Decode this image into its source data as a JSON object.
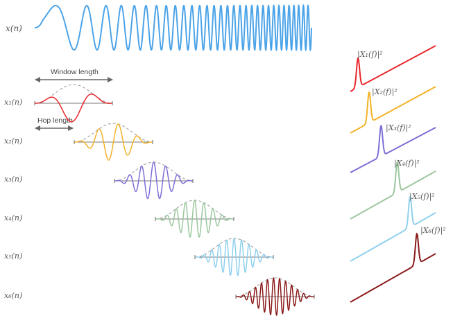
{
  "signal_label": "x(n)",
  "window_length_label": "Window length",
  "hop_length_label": "Hop length",
  "frames": [
    {
      "label": "x₁(n)",
      "spectrum_label": "|X₁(f)|²",
      "color": "#e8272b",
      "cycles": 1.6
    },
    {
      "label": "x₂(n)",
      "spectrum_label": "|X₂(f)|²",
      "color": "#f2b227",
      "cycles": 4
    },
    {
      "label": "x₃(n)",
      "spectrum_label": "|X₃(f)|²",
      "color": "#7b6fd6",
      "cycles": 6.5
    },
    {
      "label": "x₄(n)",
      "spectrum_label": "|X₄(f)|²",
      "color": "#9cc79f",
      "cycles": 8.5
    },
    {
      "label": "x₅(n)",
      "spectrum_label": "|X₅(f)|²",
      "color": "#8fd0ee",
      "cycles": 10.5
    },
    {
      "label": "x₆(n)",
      "spectrum_label": "|X₆(f)|²",
      "color": "#8b1a1a",
      "cycles": 13
    }
  ],
  "colors": {
    "signal": "#4ba3e8",
    "window_envelope": "#a8a8a8",
    "axis": "#777777",
    "arrow": "#666666"
  },
  "icons": {
    "window_arrow": "double-arrow",
    "hop_arrow": "double-arrow"
  }
}
